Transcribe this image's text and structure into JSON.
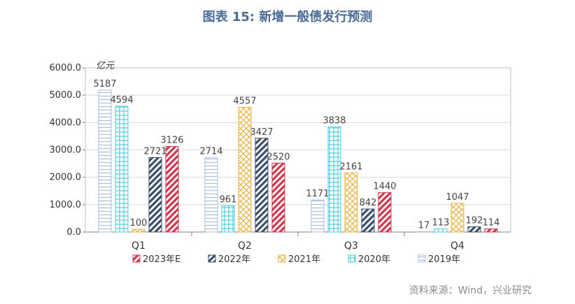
{
  "title": "图表 15: 新增一般债发行预测",
  "source": "资料来源：Wind，兴业研究",
  "chart_data": {
    "type": "bar",
    "unit_label": "亿元",
    "categories": [
      "Q1",
      "Q2",
      "Q3",
      "Q4"
    ],
    "ylim": [
      0,
      6000
    ],
    "yticks": [
      "0.0",
      "1000.0",
      "2000.0",
      "3000.0",
      "4000.0",
      "5000.0",
      "6000.0"
    ],
    "grid": true,
    "legend_position": "bottom",
    "series": [
      {
        "name": "2019年",
        "values": [
          5187,
          2714,
          1171,
          17
        ],
        "color": "#a9bfdc",
        "pattern": "horizontal"
      },
      {
        "name": "2020年",
        "values": [
          4594,
          961,
          3838,
          113
        ],
        "color": "#4fd0d8",
        "pattern": "grid"
      },
      {
        "name": "2021年",
        "values": [
          100,
          4557,
          2161,
          1047
        ],
        "color": "#e9b64a",
        "pattern": "crosshatch"
      },
      {
        "name": "2022年",
        "values": [
          2721,
          3427,
          842,
          192
        ],
        "color": "#3b4f6b",
        "pattern": "diagonal"
      },
      {
        "name": "2023年E",
        "values": [
          3126,
          2520,
          1440,
          114
        ],
        "color": "#d0374c",
        "pattern": "diagonal"
      }
    ],
    "legend_order": [
      4,
      3,
      2,
      1,
      0
    ]
  }
}
